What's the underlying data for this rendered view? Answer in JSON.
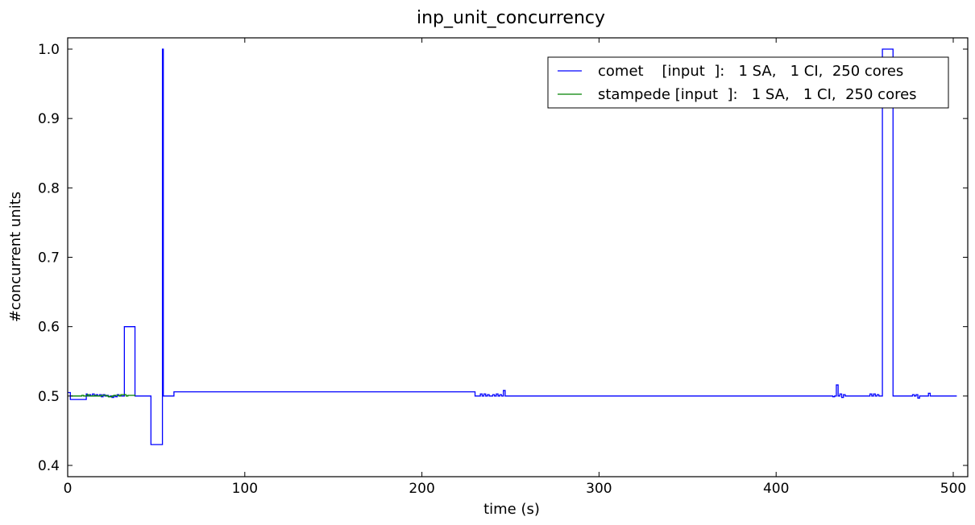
{
  "chart_data": {
    "type": "line",
    "title": "inp_unit_concurrency",
    "xlabel": "time (s)",
    "ylabel": "#concurrent units",
    "xlim": [
      0,
      510
    ],
    "ylim": [
      0.4,
      1.0
    ],
    "xticks": [
      0,
      100,
      200,
      300,
      400,
      500
    ],
    "yticks": [
      0.4,
      0.5,
      0.6,
      0.7,
      0.8,
      0.9,
      1.0
    ],
    "xtick_labels": [
      "0",
      "100",
      "200",
      "300",
      "400",
      "500"
    ],
    "ytick_labels": [
      "0.4",
      "0.5",
      "0.6",
      "0.7",
      "0.8",
      "0.9",
      "1.0"
    ],
    "legend_position": "top-right",
    "grid": false,
    "step": true,
    "series": [
      {
        "name": "comet    [input  ]:   1 SA,   1 CI,  250 cores",
        "color": "#0000ff",
        "x": [
          0,
          1.5,
          10,
          10.5,
          11,
          12,
          13,
          14,
          15,
          16,
          17,
          18,
          19,
          20,
          21,
          22,
          23,
          24,
          25,
          26,
          27,
          28,
          29,
          30,
          32,
          38,
          47,
          53.5,
          54,
          54.3,
          60,
          230,
          233,
          234,
          235,
          236,
          237,
          238,
          240,
          241,
          242,
          243,
          244,
          245,
          246,
          247,
          248,
          432,
          433,
          434,
          435,
          436,
          437,
          438,
          439,
          440,
          453,
          454,
          455,
          456,
          457,
          458,
          459,
          460,
          466,
          477,
          478,
          479,
          480,
          481,
          482,
          483,
          484,
          485,
          486,
          487,
          488,
          490,
          502
        ],
        "y": [
          0.505,
          0.495,
          0.495,
          0.503,
          0.5,
          0.502,
          0.5,
          0.503,
          0.5,
          0.502,
          0.5,
          0.502,
          0.499,
          0.502,
          0.5,
          0.501,
          0.499,
          0.5,
          0.498,
          0.5,
          0.499,
          0.502,
          0.5,
          0.5,
          0.6,
          0.5,
          0.43,
          1.0,
          0.5,
          0.5,
          0.506,
          0.5,
          0.503,
          0.5,
          0.503,
          0.5,
          0.502,
          0.5,
          0.502,
          0.5,
          0.503,
          0.5,
          0.502,
          0.5,
          0.508,
          0.5,
          0.5,
          0.499,
          0.5,
          0.516,
          0.5,
          0.503,
          0.498,
          0.502,
          0.5,
          0.5,
          0.503,
          0.5,
          0.503,
          0.5,
          0.502,
          0.5,
          0.5,
          1.0,
          0.5,
          0.502,
          0.5,
          0.502,
          0.497,
          0.5,
          0.5,
          0.5,
          0.5,
          0.5,
          0.504,
          0.5,
          0.5,
          0.5,
          0.5
        ]
      },
      {
        "name": "stampede [input  ]:   1 SA,   1 CI,  250 cores",
        "color": "#008000",
        "x": [
          2,
          8,
          9,
          11,
          12,
          15,
          16,
          18,
          19,
          22,
          23,
          25,
          26,
          29,
          30,
          33,
          34,
          38
        ],
        "y": [
          0.5,
          0.501,
          0.5,
          0.502,
          0.5,
          0.501,
          0.5,
          0.5,
          0.501,
          0.5,
          0.499,
          0.5,
          0.501,
          0.5,
          0.502,
          0.5,
          0.501,
          0.5
        ]
      }
    ]
  }
}
